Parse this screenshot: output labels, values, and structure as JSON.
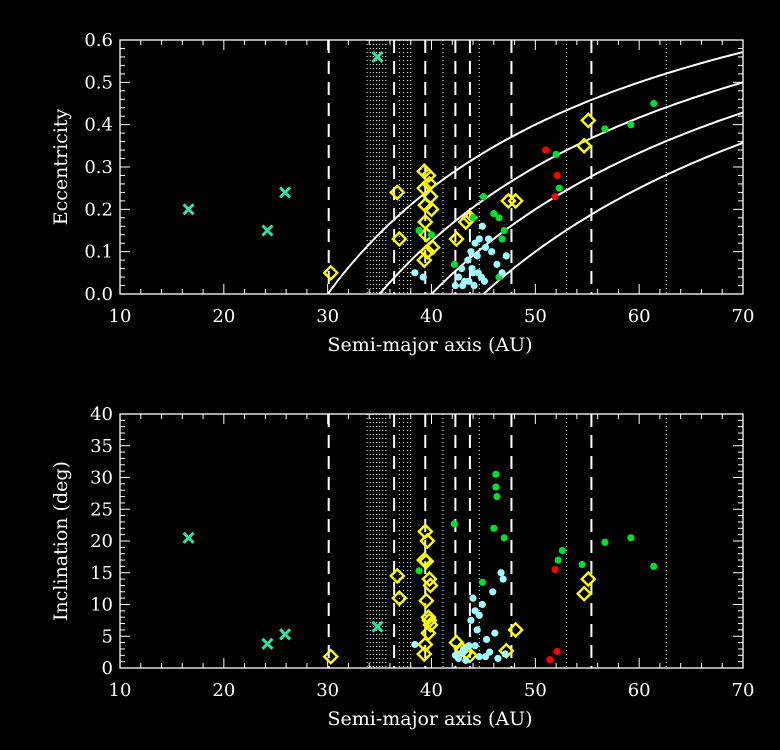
{
  "chart_data": [
    {
      "type": "scatter",
      "xlabel": "Semi-major axis (AU)",
      "ylabel": "Eccentricity",
      "xlim": [
        10,
        70
      ],
      "ylim": [
        0.0,
        0.6
      ],
      "x_ticks": [
        "10",
        "20",
        "30",
        "40",
        "50",
        "60",
        "70"
      ],
      "y_ticks": [
        "0.0",
        "0.1",
        "0.2",
        "0.3",
        "0.4",
        "0.5",
        "0.6"
      ],
      "series": [
        {
          "marker": "x",
          "color": "#33e0a0",
          "points": [
            [
              16.6,
              0.2
            ],
            [
              24.2,
              0.15
            ],
            [
              25.9,
              0.24
            ],
            [
              34.8,
              0.56
            ]
          ]
        },
        {
          "marker": "diamond",
          "color": "#ffff00",
          "points": [
            [
              30.3,
              0.05
            ],
            [
              36.7,
              0.24
            ],
            [
              36.9,
              0.13
            ],
            [
              39.3,
              0.29
            ],
            [
              39.3,
              0.25
            ],
            [
              39.4,
              0.21
            ],
            [
              39.4,
              0.17
            ],
            [
              39.5,
              0.14
            ],
            [
              39.6,
              0.1
            ],
            [
              39.7,
              0.28
            ],
            [
              39.8,
              0.26
            ],
            [
              39.9,
              0.23
            ],
            [
              40.0,
              0.2
            ],
            [
              40.1,
              0.11
            ],
            [
              39.3,
              0.08
            ],
            [
              42.4,
              0.13
            ],
            [
              43.3,
              0.17
            ],
            [
              43.7,
              0.18
            ],
            [
              47.4,
              0.22
            ],
            [
              48.1,
              0.22
            ],
            [
              54.7,
              0.35
            ],
            [
              55.1,
              0.41
            ]
          ]
        },
        {
          "marker": "dot",
          "color": "#ff0000",
          "points": [
            [
              51.0,
              0.34
            ],
            [
              52.1,
              0.28
            ],
            [
              51.9,
              0.23
            ]
          ]
        },
        {
          "marker": "dot",
          "color": "#00dd33",
          "points": [
            [
              38.8,
              0.15
            ],
            [
              40.0,
              0.14
            ],
            [
              42.2,
              0.07
            ],
            [
              44.0,
              0.18
            ],
            [
              45.0,
              0.23
            ],
            [
              46.0,
              0.19
            ],
            [
              46.5,
              0.18
            ],
            [
              46.8,
              0.13
            ],
            [
              47.0,
              0.15
            ],
            [
              46.5,
              0.04
            ],
            [
              52.0,
              0.33
            ],
            [
              52.3,
              0.25
            ],
            [
              56.7,
              0.39
            ],
            [
              59.2,
              0.4
            ],
            [
              61.4,
              0.45
            ]
          ]
        },
        {
          "marker": "dot",
          "color": "#a0ffff",
          "points": [
            [
              38.4,
              0.05
            ],
            [
              39.2,
              0.04
            ],
            [
              42.3,
              0.02
            ],
            [
              42.6,
              0.04
            ],
            [
              42.9,
              0.06
            ],
            [
              43.2,
              0.03
            ],
            [
              43.5,
              0.08
            ],
            [
              43.8,
              0.1
            ],
            [
              44.0,
              0.05
            ],
            [
              44.2,
              0.12
            ],
            [
              44.4,
              0.09
            ],
            [
              44.6,
              0.13
            ],
            [
              44.9,
              0.16
            ],
            [
              45.2,
              0.11
            ],
            [
              45.5,
              0.13
            ],
            [
              45.8,
              0.1
            ],
            [
              46.3,
              0.07
            ],
            [
              46.8,
              0.05
            ],
            [
              47.2,
              0.09
            ],
            [
              43.0,
              0.02
            ],
            [
              43.6,
              0.03
            ],
            [
              44.1,
              0.02
            ],
            [
              44.8,
              0.04
            ],
            [
              45.1,
              0.03
            ],
            [
              43.9,
              0.06
            ],
            [
              44.5,
              0.05
            ]
          ]
        }
      ],
      "resonances_dashed": [
        30.1,
        36.4,
        39.4,
        42.3,
        43.7,
        47.7,
        55.4
      ],
      "resonances_dotted": [
        33.8,
        34.1,
        34.4,
        34.7,
        35.0,
        35.3,
        35.6,
        36.9,
        37.3,
        37.7,
        38.0,
        41.1,
        44.6,
        53.0,
        62.6
      ],
      "perihelion_curves_q": [
        30,
        35,
        40,
        45
      ]
    },
    {
      "type": "scatter",
      "xlabel": "Semi-major axis (AU)",
      "ylabel": "Inclination (deg)",
      "xlim": [
        10,
        70
      ],
      "ylim": [
        0,
        40
      ],
      "x_ticks": [
        "10",
        "20",
        "30",
        "40",
        "50",
        "60",
        "70"
      ],
      "y_ticks": [
        "0",
        "5",
        "10",
        "15",
        "20",
        "25",
        "30",
        "35",
        "40"
      ],
      "series": [
        {
          "marker": "x",
          "color": "#33e0a0",
          "points": [
            [
              16.6,
              20.5
            ],
            [
              24.2,
              3.8
            ],
            [
              25.9,
              5.3
            ],
            [
              34.8,
              6.5
            ]
          ]
        },
        {
          "marker": "diamond",
          "color": "#ffff00",
          "points": [
            [
              30.3,
              1.8
            ],
            [
              36.7,
              14.5
            ],
            [
              36.9,
              11.0
            ],
            [
              39.4,
              21.5
            ],
            [
              39.6,
              20.0
            ],
            [
              39.3,
              17.0
            ],
            [
              39.5,
              16.8
            ],
            [
              39.8,
              14.0
            ],
            [
              39.9,
              13.0
            ],
            [
              39.5,
              10.6
            ],
            [
              39.7,
              8.0
            ],
            [
              39.8,
              7.5
            ],
            [
              39.9,
              6.8
            ],
            [
              39.7,
              5.5
            ],
            [
              39.4,
              3.7
            ],
            [
              39.3,
              2.2
            ],
            [
              42.4,
              4.0
            ],
            [
              42.9,
              3.0
            ],
            [
              43.3,
              2.5
            ],
            [
              43.7,
              2.0
            ],
            [
              47.2,
              2.7
            ],
            [
              48.1,
              6.0
            ],
            [
              54.7,
              11.7
            ],
            [
              55.1,
              14.0
            ]
          ]
        },
        {
          "marker": "dot",
          "color": "#ff0000",
          "points": [
            [
              51.4,
              1.3
            ],
            [
              52.1,
              2.6
            ],
            [
              51.9,
              15.5
            ]
          ]
        },
        {
          "marker": "dot",
          "color": "#00dd33",
          "points": [
            [
              38.8,
              15.3
            ],
            [
              42.2,
              22.7
            ],
            [
              44.9,
              13.5
            ],
            [
              46.2,
              30.5
            ],
            [
              46.2,
              28.5
            ],
            [
              46.3,
              27.0
            ],
            [
              46.0,
              22.0
            ],
            [
              47.0,
              20.5
            ],
            [
              52.2,
              17.0
            ],
            [
              52.6,
              18.5
            ],
            [
              54.5,
              16.3
            ],
            [
              56.7,
              19.8
            ],
            [
              59.2,
              20.5
            ],
            [
              61.4,
              16.0
            ]
          ]
        },
        {
          "marker": "dot",
          "color": "#a0ffff",
          "points": [
            [
              38.4,
              3.7
            ],
            [
              42.3,
              2.0
            ],
            [
              42.6,
              1.5
            ],
            [
              43.0,
              2.5
            ],
            [
              43.3,
              1.2
            ],
            [
              43.6,
              3.5
            ],
            [
              43.8,
              7.5
            ],
            [
              44.0,
              11.0
            ],
            [
              44.2,
              9.0
            ],
            [
              44.4,
              6.0
            ],
            [
              44.6,
              8.3
            ],
            [
              44.9,
              10.0
            ],
            [
              45.2,
              1.8
            ],
            [
              45.6,
              2.5
            ],
            [
              45.9,
              12.0
            ],
            [
              46.1,
              5.5
            ],
            [
              46.4,
              1.5
            ],
            [
              46.7,
              15.0
            ],
            [
              46.9,
              14.0
            ],
            [
              47.1,
              2.2
            ],
            [
              44.2,
              3.5
            ],
            [
              44.6,
              1.8
            ],
            [
              45.3,
              4.5
            ],
            [
              43.1,
              3.0
            ]
          ]
        }
      ],
      "resonances_dashed": [
        30.1,
        36.4,
        39.4,
        42.3,
        43.7,
        47.7,
        55.4
      ],
      "resonances_dotted": [
        33.8,
        34.1,
        34.4,
        34.7,
        35.0,
        35.3,
        35.6,
        36.9,
        37.3,
        37.7,
        38.0,
        41.1,
        44.6,
        53.0,
        62.6
      ]
    }
  ]
}
